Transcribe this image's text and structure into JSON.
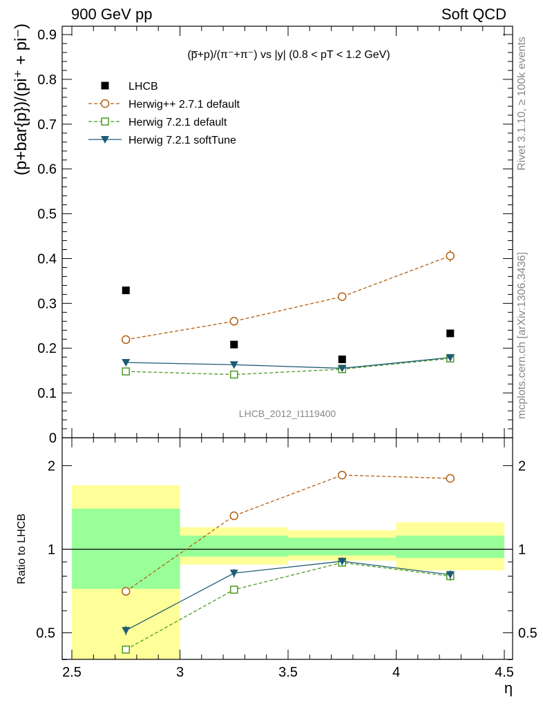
{
  "header": {
    "left": "900 GeV pp",
    "right": "Soft QCD"
  },
  "side_labels": {
    "top": "Rivet 3.1.10, ≥ 100k events",
    "bottom": "mcplots.cern.ch [arXiv:1306.3436]"
  },
  "chart_data": [
    {
      "type": "scatter",
      "title": "(p̅+p)/(π⁻+π⁻) vs |y| (0.8 < pT < 1.2 GeV)",
      "ylabel": "(p+bar{p})/(pi⁺ + pi⁻)",
      "xlabel": "",
      "watermark": "LHCB_2012_I1119400",
      "xlim": [
        2.5,
        4.5
      ],
      "ylim": [
        0,
        0.92
      ],
      "yticks": [
        "0",
        "0.1",
        "0.2",
        "0.3",
        "0.4",
        "0.5",
        "0.6",
        "0.7",
        "0.8",
        "0.9"
      ],
      "legend_placement": "top-left",
      "x": [
        2.75,
        3.25,
        3.75,
        4.25
      ],
      "series": [
        {
          "name": "LHCB",
          "style": "data",
          "color": "#000000",
          "marker": "filled-square",
          "values": [
            0.329,
            0.208,
            0.175,
            0.233
          ]
        },
        {
          "name": "Herwig++ 2.7.1 default",
          "style": "dashed",
          "color": "#b25e0e",
          "marker": "open-circle",
          "values": [
            0.219,
            0.26,
            0.315,
            0.406
          ],
          "errors": [
            0,
            0,
            0.008,
            0.013
          ]
        },
        {
          "name": "Herwig 7.2.1 default",
          "style": "dashed",
          "color": "#4a9a1f",
          "marker": "open-square",
          "values": [
            0.148,
            0.141,
            0.153,
            0.177
          ],
          "errors": [
            0,
            0,
            0.004,
            0.005
          ]
        },
        {
          "name": "Herwig 7.2.1 softTune",
          "style": "solid",
          "color": "#1c5c74",
          "marker": "filled-triangle-down",
          "values": [
            0.168,
            0.163,
            0.155,
            0.179
          ],
          "errors": [
            0,
            0,
            0.003,
            0.004
          ]
        }
      ]
    },
    {
      "type": "line",
      "title": "",
      "ylabel": "Ratio to LHCB",
      "xlabel": "η",
      "xlim": [
        2.5,
        4.5
      ],
      "ylim": [
        0.35,
        2.3
      ],
      "yticks": [
        "0.5",
        "1",
        "2"
      ],
      "xticks": [
        "2.5",
        "3",
        "3.5",
        "4",
        "4.5"
      ],
      "reference": 1,
      "band_bins": [
        [
          2.5,
          3.0
        ],
        [
          3.0,
          3.5
        ],
        [
          3.5,
          4.0
        ],
        [
          4.0,
          4.5
        ]
      ],
      "band_outer": [
        [
          0.39,
          1.7
        ],
        [
          0.88,
          1.2
        ],
        [
          0.91,
          1.17
        ],
        [
          0.84,
          1.25
        ]
      ],
      "band_inner": [
        [
          0.72,
          1.4
        ],
        [
          0.94,
          1.12
        ],
        [
          0.95,
          1.1
        ],
        [
          0.93,
          1.12
        ]
      ],
      "band_outer_color": "#ffff99",
      "band_inner_color": "#99ff99",
      "x": [
        2.75,
        3.25,
        3.75,
        4.25
      ],
      "series": [
        {
          "name": "Herwig++ 2.7.1 default",
          "style": "dashed",
          "color": "#b25e0e",
          "marker": "open-circle",
          "values": [
            0.705,
            1.32,
            1.85,
            1.8
          ],
          "errors": [
            0.02,
            0.03,
            0.04,
            0.05
          ]
        },
        {
          "name": "Herwig 7.2.1 default",
          "style": "dashed",
          "color": "#4a9a1f",
          "marker": "open-square",
          "values": [
            0.435,
            0.715,
            0.895,
            0.8
          ],
          "errors": [
            0.01,
            0.02,
            0.02,
            0.03
          ]
        },
        {
          "name": "Herwig 7.2.1 softTune",
          "style": "solid",
          "color": "#1c5c74",
          "marker": "filled-triangle-down",
          "values": [
            0.51,
            0.82,
            0.905,
            0.81
          ],
          "errors": [
            0.02,
            0.03,
            0.03,
            0.03
          ]
        }
      ]
    }
  ]
}
